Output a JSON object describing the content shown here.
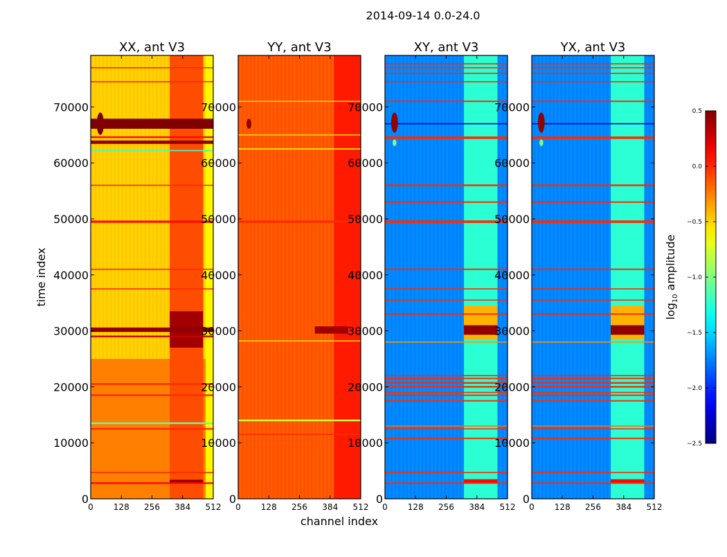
{
  "chart_data": {
    "type": "heatmap",
    "title": "2014-09-14 0.0-24.0",
    "xlabel": "channel index",
    "ylabel": "time index",
    "xlim": [
      0,
      512
    ],
    "ylim": [
      0,
      79200
    ],
    "xticks": [
      "0",
      "128",
      "256",
      "384",
      "512"
    ],
    "xtick_values": [
      0,
      128,
      256,
      384,
      512
    ],
    "yticks": [
      "0",
      "10000",
      "20000",
      "30000",
      "40000",
      "50000",
      "60000",
      "70000"
    ],
    "ytick_values": [
      0,
      10000,
      20000,
      30000,
      40000,
      50000,
      60000,
      70000
    ],
    "colorbar": {
      "label_main": "log",
      "label_sub": "10",
      "label_rest": " amplitude",
      "range": [
        -2.5,
        0.5
      ],
      "colormap": "jet",
      "ticks": [
        "0.5",
        "0.0",
        "−0.5",
        "−1.0",
        "−1.5",
        "−2.0",
        "−2.5"
      ],
      "tick_values": [
        0.5,
        0.0,
        -0.5,
        -1.0,
        -1.5,
        -2.0,
        -2.5
      ]
    },
    "panels": [
      {
        "title": "XX, ant V3",
        "base": -0.5,
        "bands": [
          {
            "c0": 0,
            "c1": 512,
            "t0": 0,
            "t1": 25000,
            "v": -0.25
          },
          {
            "c0": 330,
            "c1": 470,
            "t0": 0,
            "t1": 79200,
            "v": -0.1
          },
          {
            "c0": 480,
            "c1": 512,
            "t0": 0,
            "t1": 79200,
            "v": -0.6
          },
          {
            "c0": 330,
            "c1": 470,
            "t0": 27000,
            "t1": 33500,
            "v": 0.4
          },
          {
            "c0": 330,
            "c1": 470,
            "t0": 2800,
            "t1": 3400,
            "v": 0.45
          }
        ],
        "stripes": [
          {
            "t": 67000,
            "dt": 1800,
            "v": 0.5
          },
          {
            "t": 63700,
            "dt": 600,
            "v": 0.45
          },
          {
            "t": 64600,
            "dt": 300,
            "v": 0.1
          },
          {
            "t": 62200,
            "dt": 200,
            "v": -1.2
          },
          {
            "t": 49500,
            "dt": 400,
            "v": 0.1
          },
          {
            "t": 56000,
            "dt": 200,
            "v": 0.0
          },
          {
            "t": 30200,
            "dt": 800,
            "v": 0.45
          },
          {
            "t": 29000,
            "dt": 300,
            "v": 0.3
          },
          {
            "t": 20500,
            "dt": 300,
            "v": 0.0
          },
          {
            "t": 18500,
            "dt": 300,
            "v": 0.0
          },
          {
            "t": 13500,
            "dt": 300,
            "v": -1.1
          },
          {
            "t": 12500,
            "dt": 300,
            "v": 0.0
          },
          {
            "t": 4700,
            "dt": 200,
            "v": 0.0
          },
          {
            "t": 2800,
            "dt": 300,
            "v": 0.1
          },
          {
            "t": 41000,
            "dt": 200,
            "v": 0.0
          },
          {
            "t": 37500,
            "dt": 200,
            "v": 0.0
          },
          {
            "t": 74500,
            "dt": 200,
            "v": 0.0
          },
          {
            "t": 77000,
            "dt": 200,
            "v": 0.0
          }
        ],
        "spots": [
          {
            "c": 40,
            "t": 67000,
            "dc": 30,
            "dt": 4000,
            "v": 0.5
          }
        ]
      },
      {
        "title": "YY, ant V3",
        "base": -0.15,
        "bands": [
          {
            "c0": 400,
            "c1": 512,
            "t0": 0,
            "t1": 79200,
            "v": 0.05
          },
          {
            "c0": 320,
            "c1": 460,
            "t0": 29500,
            "t1": 30800,
            "v": 0.4
          }
        ],
        "stripes": [
          {
            "t": 71000,
            "dt": 200,
            "v": -0.5
          },
          {
            "t": 65000,
            "dt": 200,
            "v": -0.5
          },
          {
            "t": 62500,
            "dt": 200,
            "v": -0.6
          },
          {
            "t": 49500,
            "dt": 400,
            "v": 0.0
          },
          {
            "t": 28200,
            "dt": 200,
            "v": -0.5
          },
          {
            "t": 14000,
            "dt": 300,
            "v": -0.8
          },
          {
            "t": 11500,
            "dt": 200,
            "v": 0.0
          }
        ],
        "spots": [
          {
            "c": 45,
            "t": 67000,
            "dc": 20,
            "dt": 1800,
            "v": 0.45
          }
        ]
      },
      {
        "title": "XY, ant V3",
        "base": -1.75,
        "bands": [
          {
            "c0": 330,
            "c1": 470,
            "t0": 0,
            "t1": 79200,
            "v": -1.25
          },
          {
            "c0": 330,
            "c1": 470,
            "t0": 28500,
            "t1": 34500,
            "v": -0.4
          },
          {
            "c0": 330,
            "c1": 470,
            "t0": 29300,
            "t1": 31000,
            "v": 0.45
          },
          {
            "c0": 330,
            "c1": 470,
            "t0": 2800,
            "t1": 3500,
            "v": 0.1
          }
        ],
        "stripes": [
          {
            "t": 2800,
            "dt": 250,
            "v": 0.0
          },
          {
            "t": 4700,
            "dt": 200,
            "v": 0.0
          },
          {
            "t": 10800,
            "dt": 250,
            "v": 0.0
          },
          {
            "t": 12500,
            "dt": 200,
            "v": 0.0
          },
          {
            "t": 13000,
            "dt": 200,
            "v": -0.2
          },
          {
            "t": 17500,
            "dt": 250,
            "v": 0.0
          },
          {
            "t": 18500,
            "dt": 250,
            "v": 0.0
          },
          {
            "t": 19000,
            "dt": 200,
            "v": 0.0
          },
          {
            "t": 20000,
            "dt": 300,
            "v": 0.0
          },
          {
            "t": 20700,
            "dt": 300,
            "v": 0.0
          },
          {
            "t": 21500,
            "dt": 250,
            "v": 0.0
          },
          {
            "t": 22000,
            "dt": 200,
            "v": 0.0
          },
          {
            "t": 28000,
            "dt": 200,
            "v": -0.3
          },
          {
            "t": 33000,
            "dt": 250,
            "v": 0.0
          },
          {
            "t": 35500,
            "dt": 200,
            "v": 0.0
          },
          {
            "t": 37500,
            "dt": 200,
            "v": 0.0
          },
          {
            "t": 41000,
            "dt": 250,
            "v": 0.0
          },
          {
            "t": 49500,
            "dt": 450,
            "v": 0.0
          },
          {
            "t": 53000,
            "dt": 250,
            "v": 0.0
          },
          {
            "t": 56000,
            "dt": 300,
            "v": 0.0
          },
          {
            "t": 64500,
            "dt": 450,
            "v": 0.0
          },
          {
            "t": 67000,
            "dt": 200,
            "v": -2.3
          },
          {
            "t": 71000,
            "dt": 250,
            "v": 0.0
          },
          {
            "t": 74500,
            "dt": 200,
            "v": 0.0
          },
          {
            "t": 76000,
            "dt": 200,
            "v": 0.0
          },
          {
            "t": 77000,
            "dt": 200,
            "v": 0.0
          },
          {
            "t": 77700,
            "dt": 200,
            "v": 0.0
          }
        ],
        "spots": [
          {
            "c": 40,
            "t": 67200,
            "dc": 28,
            "dt": 3600,
            "v": 0.45
          },
          {
            "c": 40,
            "t": 63600,
            "dc": 16,
            "dt": 1200,
            "v": -1.0
          }
        ]
      },
      {
        "title": "YX, ant V3",
        "base": -1.75,
        "bands": [
          {
            "c0": 330,
            "c1": 470,
            "t0": 0,
            "t1": 79200,
            "v": -1.25
          },
          {
            "c0": 330,
            "c1": 470,
            "t0": 28500,
            "t1": 34500,
            "v": -0.4
          },
          {
            "c0": 330,
            "c1": 470,
            "t0": 29300,
            "t1": 31000,
            "v": 0.45
          },
          {
            "c0": 330,
            "c1": 470,
            "t0": 2800,
            "t1": 3500,
            "v": 0.1
          }
        ],
        "stripes": [
          {
            "t": 2800,
            "dt": 250,
            "v": 0.0
          },
          {
            "t": 4700,
            "dt": 200,
            "v": 0.0
          },
          {
            "t": 10800,
            "dt": 250,
            "v": 0.0
          },
          {
            "t": 12500,
            "dt": 200,
            "v": 0.0
          },
          {
            "t": 13000,
            "dt": 200,
            "v": -0.2
          },
          {
            "t": 17500,
            "dt": 250,
            "v": 0.0
          },
          {
            "t": 18500,
            "dt": 250,
            "v": 0.0
          },
          {
            "t": 19000,
            "dt": 200,
            "v": 0.0
          },
          {
            "t": 20000,
            "dt": 300,
            "v": 0.0
          },
          {
            "t": 20700,
            "dt": 300,
            "v": 0.0
          },
          {
            "t": 21500,
            "dt": 250,
            "v": 0.0
          },
          {
            "t": 22000,
            "dt": 200,
            "v": 0.0
          },
          {
            "t": 28000,
            "dt": 200,
            "v": -0.3
          },
          {
            "t": 33000,
            "dt": 250,
            "v": 0.0
          },
          {
            "t": 35500,
            "dt": 200,
            "v": 0.0
          },
          {
            "t": 37500,
            "dt": 200,
            "v": 0.0
          },
          {
            "t": 41000,
            "dt": 250,
            "v": 0.0
          },
          {
            "t": 49500,
            "dt": 450,
            "v": 0.0
          },
          {
            "t": 53000,
            "dt": 250,
            "v": 0.0
          },
          {
            "t": 56000,
            "dt": 300,
            "v": 0.0
          },
          {
            "t": 64500,
            "dt": 450,
            "v": 0.0
          },
          {
            "t": 67000,
            "dt": 200,
            "v": -2.3
          },
          {
            "t": 71000,
            "dt": 250,
            "v": 0.0
          },
          {
            "t": 74500,
            "dt": 200,
            "v": 0.0
          },
          {
            "t": 76000,
            "dt": 200,
            "v": 0.0
          },
          {
            "t": 77000,
            "dt": 200,
            "v": 0.0
          },
          {
            "t": 77700,
            "dt": 200,
            "v": 0.0
          }
        ],
        "spots": [
          {
            "c": 40,
            "t": 67200,
            "dc": 28,
            "dt": 3600,
            "v": 0.45
          },
          {
            "c": 40,
            "t": 63600,
            "dc": 16,
            "dt": 1200,
            "v": -1.0
          }
        ]
      }
    ]
  }
}
